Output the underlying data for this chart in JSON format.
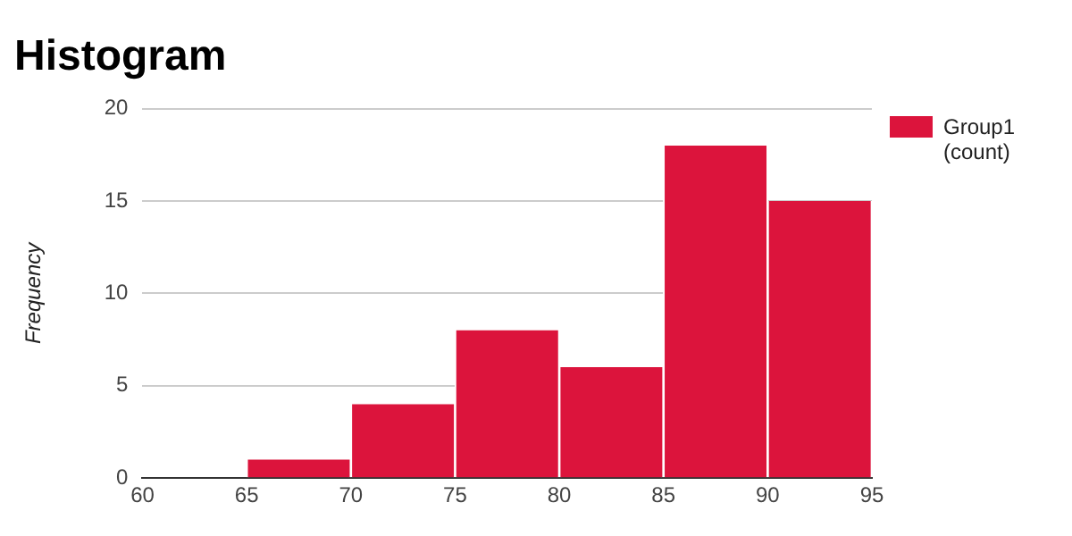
{
  "chart_data": {
    "type": "histogram",
    "title": "Histogram",
    "ylabel": "Frequency",
    "bins": [
      60,
      65,
      70,
      75,
      80,
      85,
      90,
      95
    ],
    "series": [
      {
        "name": "Group1 (count)",
        "color": "#dc143c",
        "values": [
          0,
          1,
          4,
          8,
          6,
          18,
          15
        ]
      }
    ],
    "xlim": [
      60,
      95
    ],
    "xticks": [
      60,
      65,
      70,
      75,
      80,
      85,
      90,
      95
    ],
    "ylim": [
      0,
      20
    ],
    "yticks": [
      0,
      5,
      10,
      15,
      20
    ],
    "grid": "y",
    "legend": "right"
  }
}
